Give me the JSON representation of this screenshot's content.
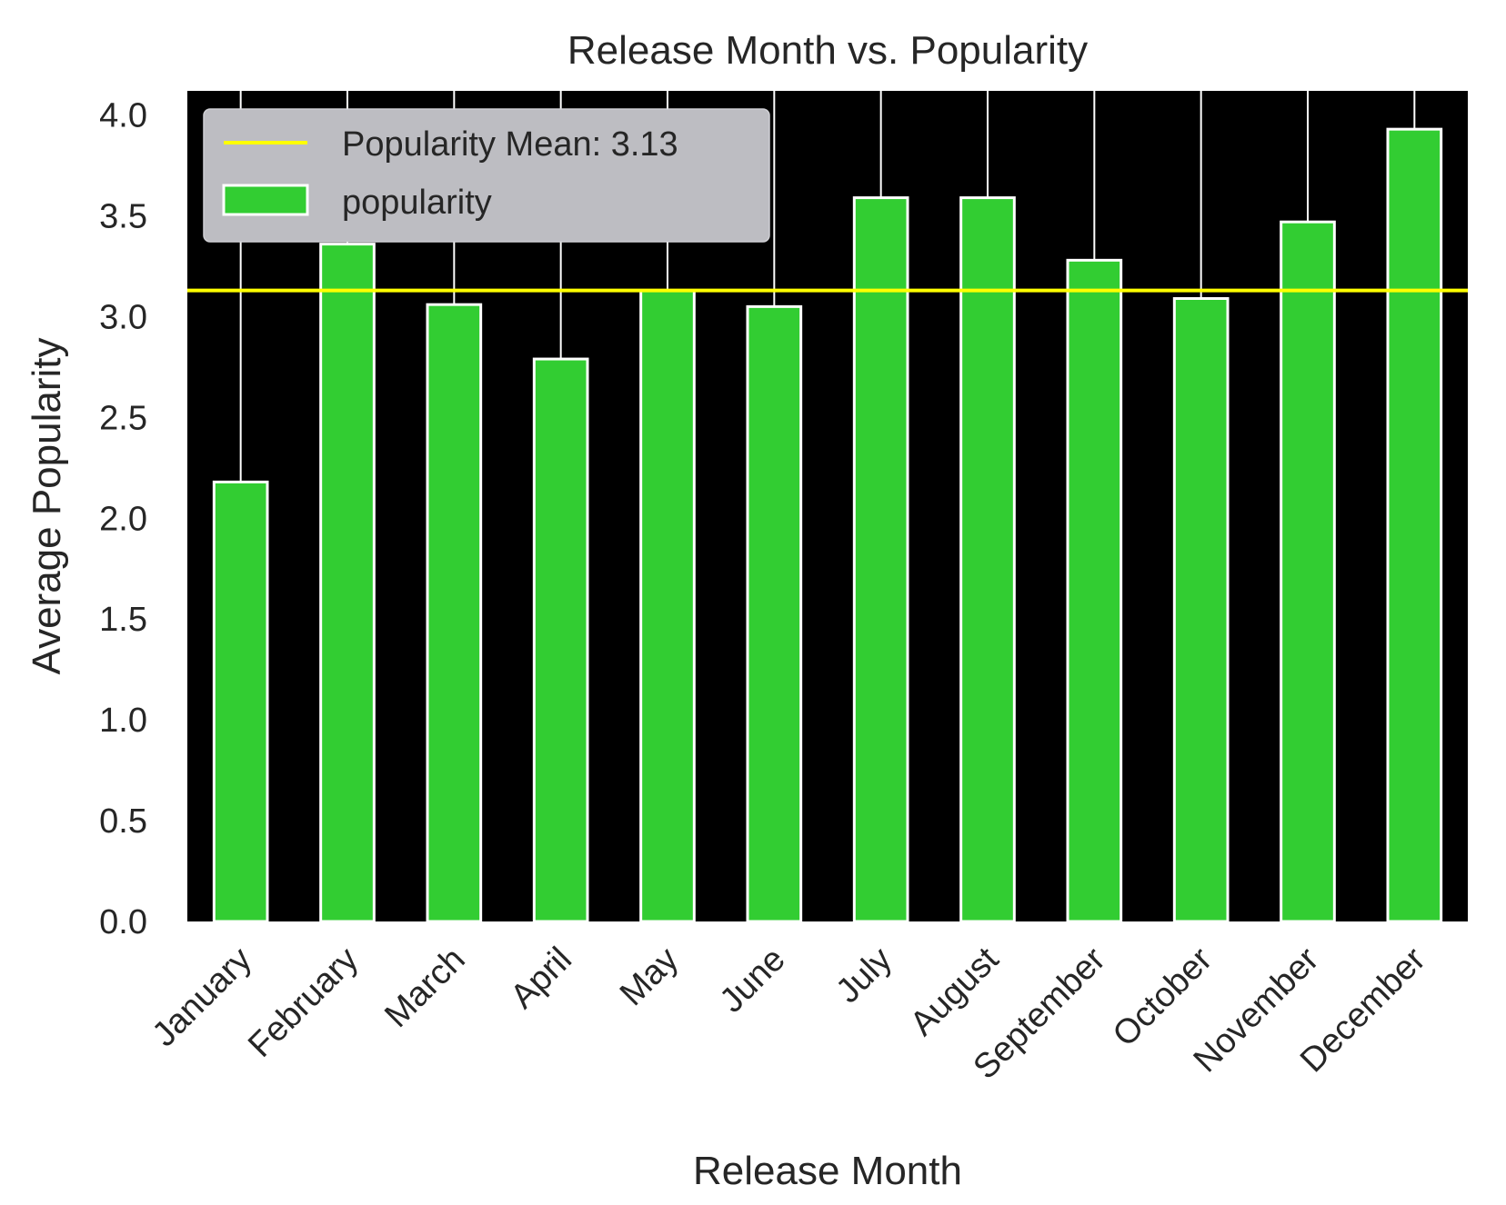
{
  "chart_data": {
    "type": "bar",
    "title": "Release Month vs. Popularity",
    "xlabel": "Release Month",
    "ylabel": "Average Popularity",
    "categories": [
      "January",
      "February",
      "March",
      "April",
      "May",
      "June",
      "July",
      "August",
      "September",
      "October",
      "November",
      "December"
    ],
    "series": [
      {
        "name": "popularity",
        "values": [
          2.18,
          3.36,
          3.06,
          2.79,
          3.13,
          3.05,
          3.59,
          3.59,
          3.28,
          3.09,
          3.47,
          3.93
        ],
        "color": "#32cd32"
      }
    ],
    "reference_line": {
      "label": "Popularity Mean: 3.13",
      "value": 3.13,
      "color": "#ffff00"
    },
    "ylim": [
      0,
      4.12
    ],
    "yticks": [
      0.0,
      0.5,
      1.0,
      1.5,
      2.0,
      2.5,
      3.0,
      3.5,
      4.0
    ],
    "ytick_labels": [
      "0.0",
      "0.5",
      "1.0",
      "1.5",
      "2.0",
      "2.5",
      "3.0",
      "3.5",
      "4.0"
    ],
    "grid": true,
    "legend_position": "top-left",
    "plot_background": "#000000",
    "bar_edge_color": "#ffffff"
  }
}
